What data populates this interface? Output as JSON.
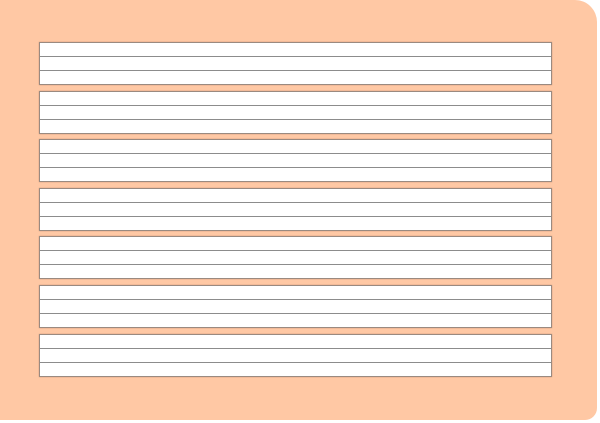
{
  "sheet": {
    "background_color": "#ffc8a4",
    "band_count": 7,
    "rules_per_band": 2,
    "band_fill_color": "#ffffff",
    "rule_color": "#8c8c8c"
  }
}
